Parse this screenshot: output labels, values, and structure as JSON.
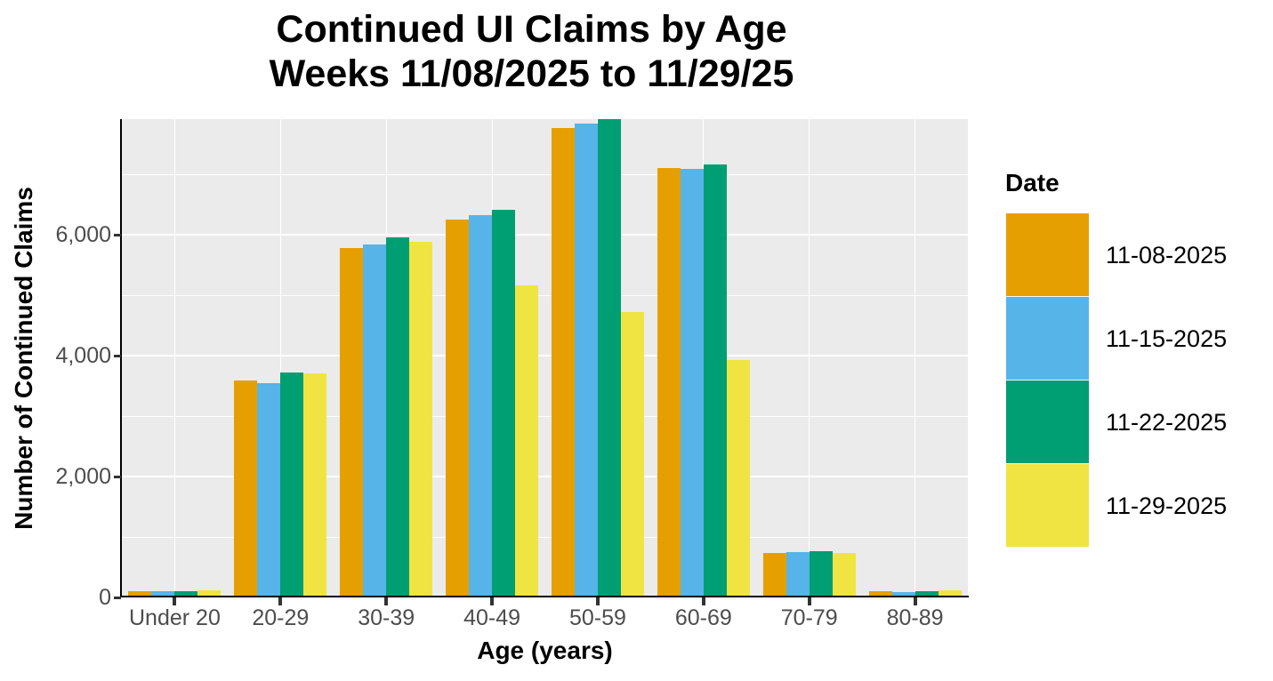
{
  "title": {
    "line1": "Continued UI Claims by Age",
    "line2": "Weeks 11/08/2025 to 11/29/25"
  },
  "axes": {
    "y_label": "Number of Continued Claims",
    "x_label": "Age (years)",
    "y_ticks": [
      {
        "value": 0,
        "label": "0"
      },
      {
        "value": 2000,
        "label": "2,000"
      },
      {
        "value": 4000,
        "label": "4,000"
      },
      {
        "value": 6000,
        "label": "6,000"
      }
    ],
    "major_gridlines": [
      2000,
      4000,
      6000
    ],
    "minor_gridlines": [
      1000,
      3000,
      5000,
      7000
    ]
  },
  "legend": {
    "title": "Date",
    "entries": [
      {
        "label": "11-08-2025",
        "color": "#E69F00"
      },
      {
        "label": "11-15-2025",
        "color": "#56B4E9"
      },
      {
        "label": "11-22-2025",
        "color": "#009E73"
      },
      {
        "label": "11-29-2025",
        "color": "#F0E442"
      }
    ]
  },
  "colors": {
    "panel_background": "#EBEBEB",
    "gridline": "#FFFFFF",
    "tick_label": "#4D4D4D",
    "axis_line": "#000000"
  },
  "chart_data": {
    "type": "bar",
    "title": "Continued UI Claims by Age — Weeks 11/08/2025 to 11/29/25",
    "xlabel": "Age (years)",
    "ylabel": "Number of Continued Claims",
    "ylim": [
      0,
      7920
    ],
    "grid": true,
    "legend_position": "right",
    "legend_title": "Date",
    "categories": [
      "Under 20",
      "20-29",
      "30-39",
      "40-49",
      "50-59",
      "60-69",
      "70-79",
      "80-89"
    ],
    "series": [
      {
        "name": "11-08-2025",
        "color": "#E69F00",
        "values": [
          110,
          3590,
          5780,
          6260,
          7780,
          7110,
          730,
          110
        ]
      },
      {
        "name": "11-15-2025",
        "color": "#56B4E9",
        "values": [
          100,
          3550,
          5840,
          6330,
          7840,
          7090,
          750,
          95
        ]
      },
      {
        "name": "11-22-2025",
        "color": "#009E73",
        "values": [
          110,
          3720,
          5960,
          6420,
          7920,
          7170,
          770,
          110
        ]
      },
      {
        "name": "11-29-2025",
        "color": "#F0E442",
        "values": [
          125,
          3710,
          5890,
          5170,
          4730,
          3930,
          730,
          120
        ]
      }
    ]
  }
}
